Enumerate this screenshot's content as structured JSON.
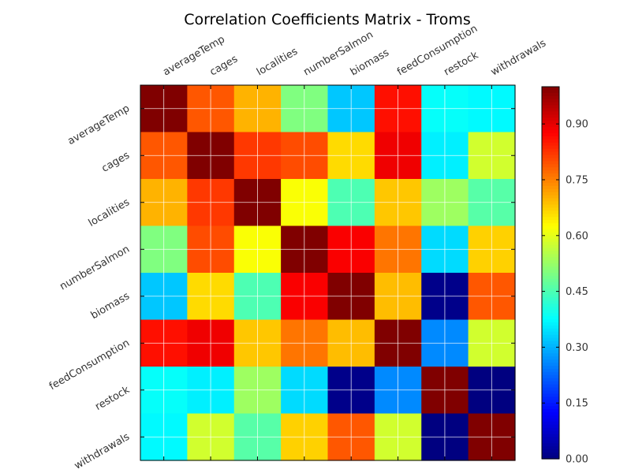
{
  "chart_data": {
    "type": "heatmap",
    "title": "Correlation Coefficients Matrix - Troms",
    "xlabel": "",
    "ylabel": "",
    "categories": [
      "averageTemp",
      "cages",
      "localities",
      "numberSalmon",
      "biomass",
      "feedConsumption",
      "restock",
      "withdrawals"
    ],
    "values": [
      [
        1.0,
        0.79,
        0.7,
        0.5,
        0.32,
        0.86,
        0.38,
        0.37
      ],
      [
        0.79,
        1.0,
        0.82,
        0.8,
        0.66,
        0.89,
        0.36,
        0.58
      ],
      [
        0.7,
        0.82,
        1.0,
        0.62,
        0.45,
        0.68,
        0.53,
        0.46
      ],
      [
        0.5,
        0.8,
        0.62,
        1.0,
        0.88,
        0.76,
        0.34,
        0.67
      ],
      [
        0.32,
        0.66,
        0.45,
        0.88,
        1.0,
        0.69,
        0.01,
        0.79
      ],
      [
        0.86,
        0.89,
        0.68,
        0.76,
        0.69,
        1.0,
        0.26,
        0.58
      ],
      [
        0.38,
        0.36,
        0.53,
        0.34,
        0.01,
        0.26,
        1.0,
        0.0
      ],
      [
        0.37,
        0.58,
        0.46,
        0.67,
        0.79,
        0.58,
        0.0,
        1.0
      ]
    ],
    "colorbar": {
      "ticks": [
        "0.00",
        "0.15",
        "0.30",
        "0.45",
        "0.60",
        "0.75",
        "0.90"
      ],
      "range": [
        0,
        1
      ],
      "colormap": "jet"
    },
    "grid": true
  }
}
